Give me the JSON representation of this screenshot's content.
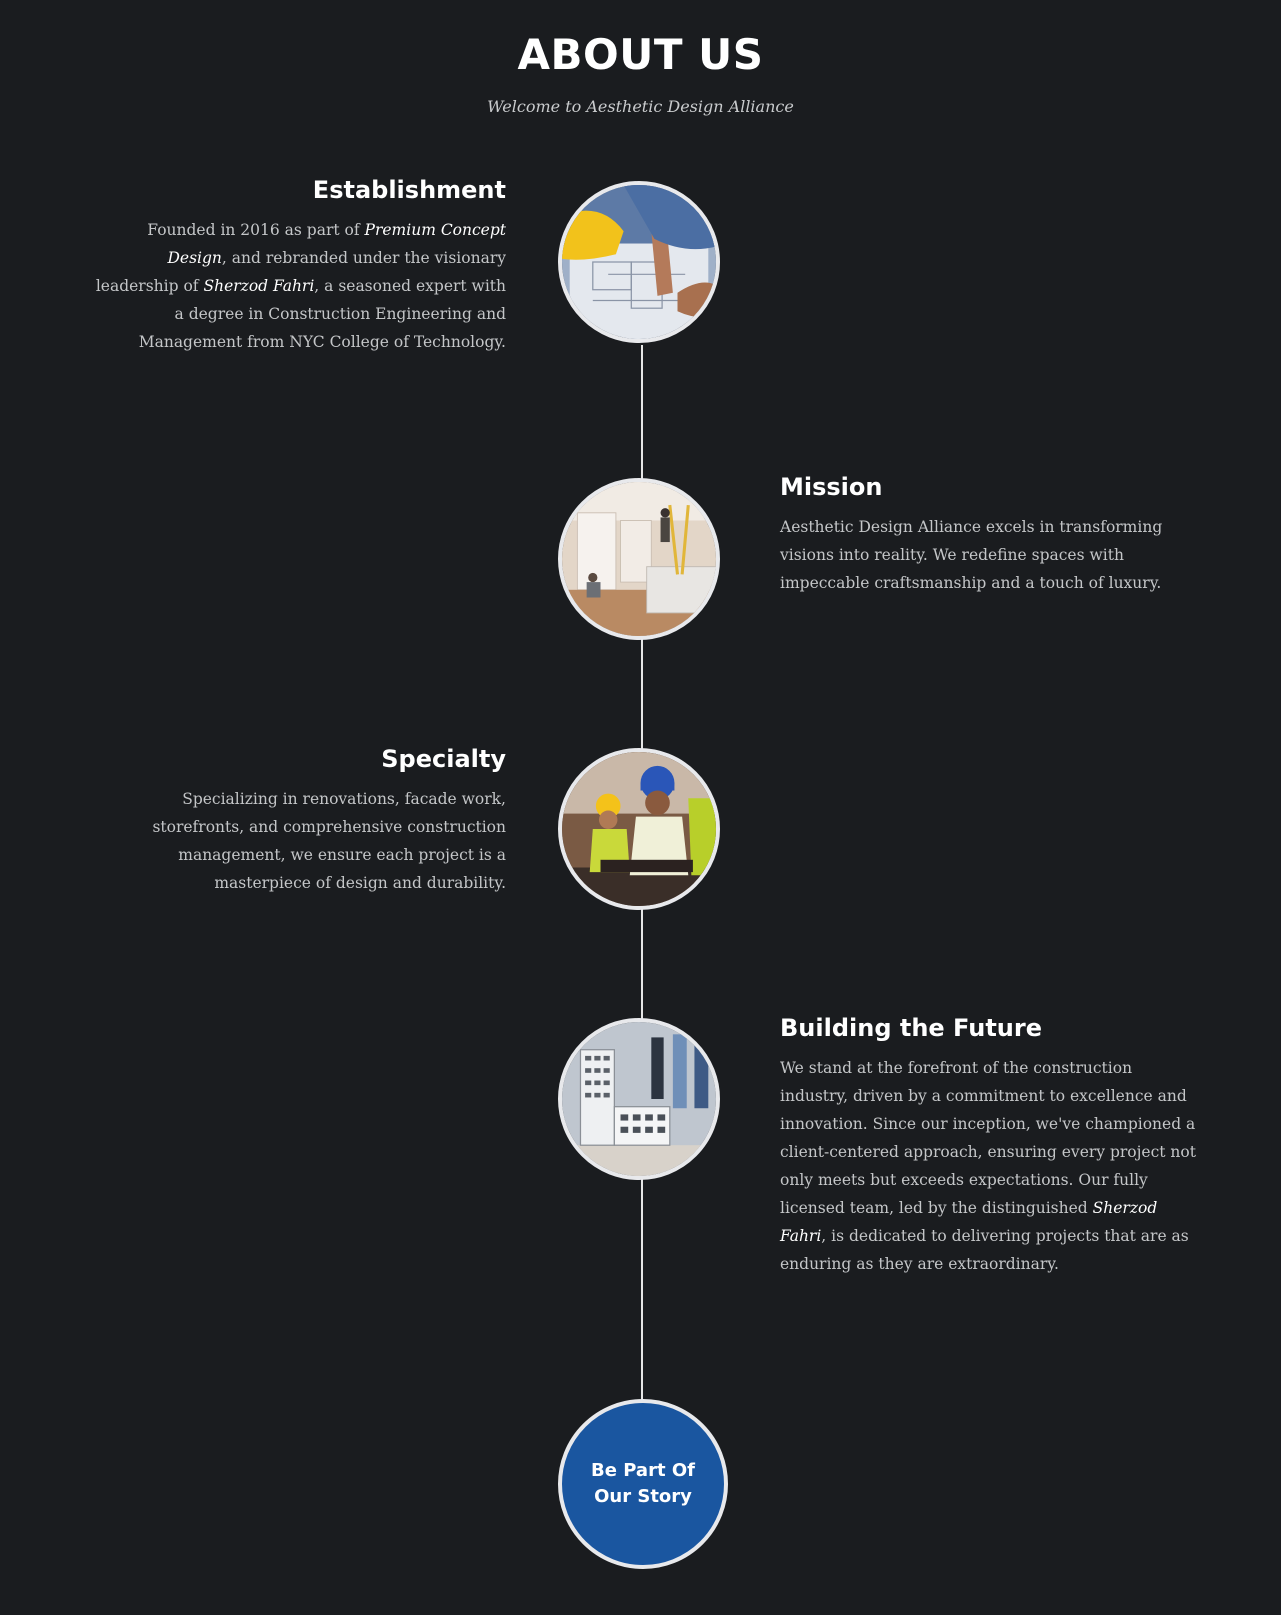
{
  "header": {
    "title": "ABOUT US",
    "subtitle": "Welcome to Aesthetic Design Alliance"
  },
  "timeline": {
    "establishment": {
      "title": "Establishment",
      "text_1": "Founded in 2016 as part of ",
      "em_1": "Premium Concept Design",
      "text_2": ", and rebranded under the visionary leadership of ",
      "em_2": "Sherzod Fahri",
      "text_3": ", a seasoned expert with a degree in Construction Engineering and Management from NYC College of Technology.",
      "image": "blueprint-photo"
    },
    "mission": {
      "title": "Mission",
      "text": "Aesthetic Design Alliance excels in transforming visions into reality. We redefine spaces with impeccable craftsmanship and a touch of luxury.",
      "image": "interior-renovation-photo"
    },
    "specialty": {
      "title": "Specialty",
      "text": "Specializing in renovations, facade work, storefronts, and comprehensive construction management, we ensure each project is a masterpiece of design and durability.",
      "image": "construction-workers-photo"
    },
    "future": {
      "title": "Building the Future",
      "text_1": "We stand at the forefront of the construction industry, driven by a commitment to excellence and innovation. Since our inception, we've championed a client-centered approach, ensuring every project not only meets but exceeds expectations. Our fully licensed team, led by the distinguished ",
      "em_1": "Sherzod Fahri",
      "text_2": ", is dedicated to delivering projects that are as enduring as they are extraordinary.",
      "image": "building-model-photo"
    }
  },
  "cta": {
    "label": "Be Part Of Our Story"
  },
  "colors": {
    "background": "#1a1c1f",
    "cta": "#1a56a0",
    "ring": "#e8e9ec"
  }
}
